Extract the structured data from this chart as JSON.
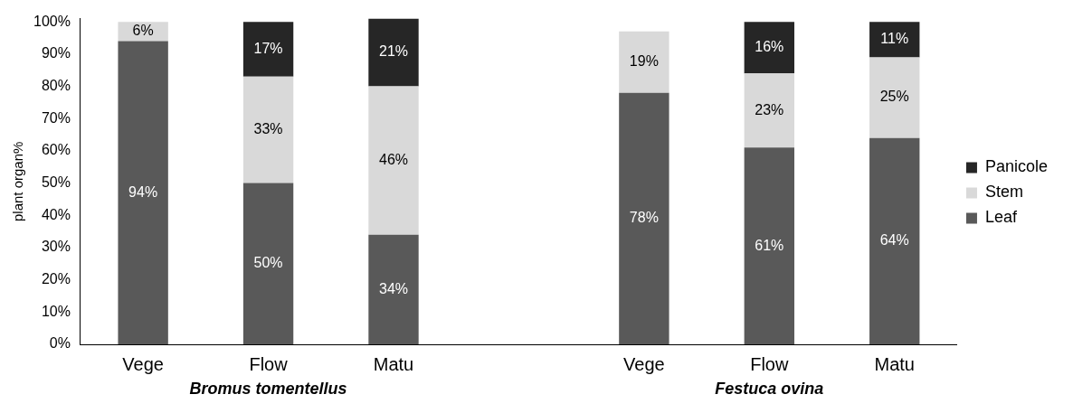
{
  "chart_data": {
    "type": "bar",
    "stacked": true,
    "ylabel": "plant organ%",
    "categories": [
      "Vege",
      "Flow",
      "Matu",
      null,
      "Vege",
      "Flow",
      "Matu"
    ],
    "series": [
      {
        "name": "Leaf",
        "color": "#595959",
        "values": [
          94,
          50,
          34,
          null,
          78,
          61,
          64
        ],
        "value_labels": [
          "94%",
          "50%",
          "34%",
          null,
          "78%",
          "61%",
          "64%"
        ]
      },
      {
        "name": "Stem",
        "color": "#d9d9d9",
        "values": [
          6,
          33,
          46,
          null,
          19,
          23,
          25
        ],
        "value_labels": [
          "6%",
          "33%",
          "46%",
          null,
          "19%",
          "23%",
          "25%"
        ]
      },
      {
        "name": "Panicole",
        "color": "#262626",
        "values": [
          0,
          17,
          21,
          null,
          0,
          16,
          11
        ],
        "value_labels": [
          null,
          "17%",
          "21%",
          null,
          null,
          "16%",
          "11%"
        ]
      }
    ],
    "ylim": [
      0,
      101
    ],
    "yticks": [
      {
        "value": 0,
        "label": "0%"
      },
      {
        "value": 10,
        "label": "10%"
      },
      {
        "value": 20,
        "label": "20%"
      },
      {
        "value": 30,
        "label": "30%"
      },
      {
        "value": 40,
        "label": "40%"
      },
      {
        "value": 50,
        "label": "50%"
      },
      {
        "value": 60,
        "label": "60%"
      },
      {
        "value": 70,
        "label": "70%"
      },
      {
        "value": 80,
        "label": "80%"
      },
      {
        "value": 90,
        "label": "90%"
      },
      {
        "value": 100,
        "label": "100%"
      }
    ],
    "grid": false,
    "legend": "right",
    "annotations": [
      "Bromus tomentellus",
      "Festuca ovina"
    ]
  }
}
